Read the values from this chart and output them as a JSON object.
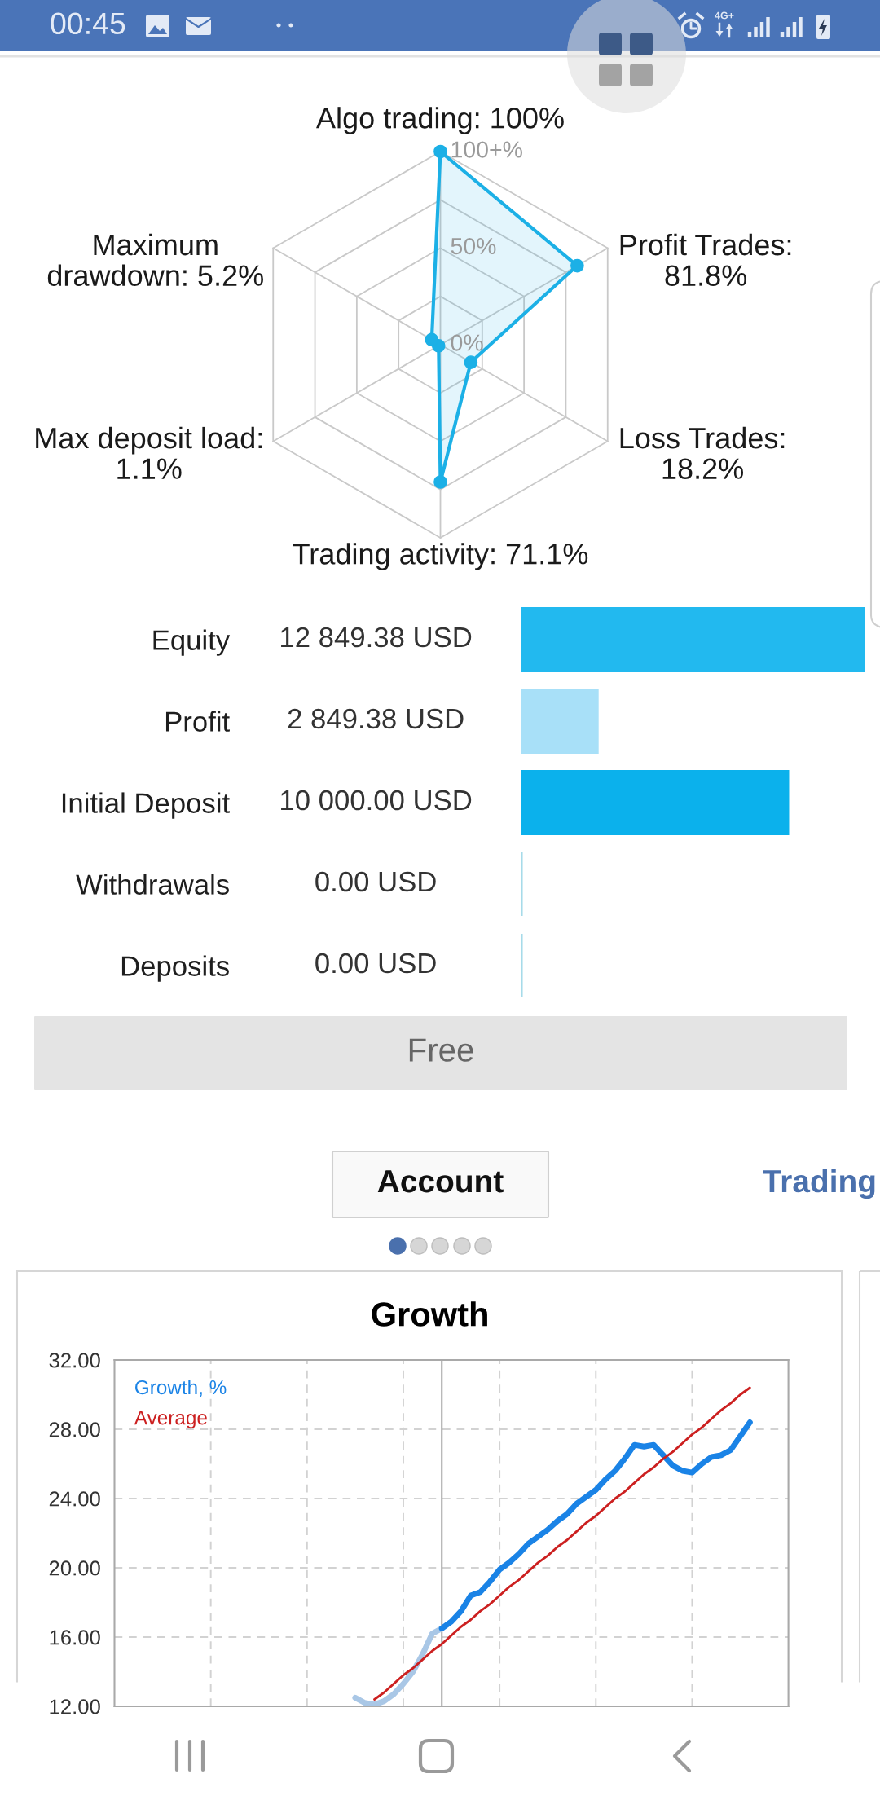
{
  "chart_data": [
    {
      "type": "other",
      "annotations": [
        "00:45",
        "4G+"
      ]
    },
    {
      "type": "radar",
      "categories": [
        "Algo trading: 100%",
        "Profit Trades:\n81.8%",
        "Loss Trades:\n18.2%",
        "Trading activity: 71.1%",
        "Max deposit load:\n1.1%",
        "Maximum\ndrawdown: 5.2%"
      ],
      "series": [
        {
          "color": "#1cb0e6",
          "values": [
            100,
            81.8,
            18.2,
            71.1,
            1.1,
            5.2
          ]
        }
      ],
      "ylim": [
        0,
        100
      ],
      "yticks": [
        {
          "value": 0,
          "label": "0%"
        },
        {
          "value": 50,
          "label": "50%"
        },
        {
          "value": 100,
          "label": "100+%"
        }
      ],
      "grid": true,
      "marker": "circle"
    },
    {
      "type": "bar",
      "orientation": "horizontal",
      "categories": [
        "Equity",
        "Profit",
        "Initial Deposit",
        "Withdrawals",
        "Deposits"
      ],
      "values": [
        12849.38,
        2849.38,
        10000,
        0,
        0
      ],
      "colors": [
        "#22b9ef",
        "#a8e0f8",
        "#0bb1ec",
        "#a6dbe9",
        "#a6dbe9"
      ],
      "value_labels": [
        "12 849.38 USD",
        "2 849.38 USD",
        "10 000.00 USD",
        "0.00 USD",
        "0.00 USD"
      ],
      "tick_labels": "y"
    },
    {
      "type": "other",
      "annotations": [
        "Free",
        "Account",
        "Trading"
      ]
    },
    {
      "type": "line",
      "title": "Growth",
      "categories": [
        null,
        null,
        null,
        null,
        null,
        null,
        null,
        null,
        null,
        null,
        null,
        null,
        null,
        null,
        null,
        null,
        null,
        null,
        null,
        null,
        null,
        null,
        null,
        null,
        null,
        null,
        null,
        null,
        null,
        null,
        null,
        null,
        null,
        null,
        null,
        null,
        null,
        null,
        null,
        null,
        null,
        null,
        null,
        null,
        null,
        null,
        null,
        null,
        null,
        null,
        null,
        null,
        null,
        null,
        null,
        null,
        null,
        null,
        null,
        null,
        null,
        null,
        null,
        null,
        null,
        null,
        null,
        null,
        null,
        null,
        null
      ],
      "series": [
        {
          "color": "#a9c7e6",
          "values": [
            null,
            null,
            null,
            null,
            null,
            null,
            null,
            null,
            null,
            null,
            null,
            null,
            null,
            null,
            null,
            null,
            null,
            null,
            null,
            null,
            null,
            null,
            null,
            null,
            null,
            12.5,
            12.2,
            12.1,
            12.3,
            12.7,
            13.3,
            14.0,
            15.0,
            16.2,
            16.5,
            null,
            null,
            null,
            null,
            null,
            null,
            null,
            null,
            null,
            null,
            null,
            null,
            null,
            null,
            null,
            null,
            null,
            null,
            null,
            null,
            null,
            null,
            null,
            null,
            null,
            null,
            null,
            null,
            null,
            null,
            null,
            null,
            null,
            null,
            null,
            null
          ]
        },
        {
          "name": "Growth, %",
          "color": "#1a83e6",
          "values": [
            null,
            null,
            null,
            null,
            null,
            null,
            null,
            null,
            null,
            null,
            null,
            null,
            null,
            null,
            null,
            null,
            null,
            null,
            null,
            null,
            null,
            null,
            null,
            null,
            null,
            null,
            null,
            null,
            null,
            null,
            null,
            null,
            null,
            null,
            16.5,
            16.9,
            17.5,
            18.4,
            18.6,
            19.2,
            19.9,
            20.3,
            20.8,
            21.4,
            21.8,
            22.2,
            22.7,
            23.1,
            23.7,
            24.1,
            24.5,
            25.1,
            25.6,
            26.3,
            27.1,
            27.0,
            27.1,
            26.5,
            25.9,
            25.6,
            25.5,
            26.0,
            26.4,
            26.5,
            26.8,
            27.6,
            28.4,
            null,
            null,
            null,
            null
          ]
        },
        {
          "name": "Average",
          "color": "#cc2020",
          "values": [
            null,
            null,
            null,
            null,
            null,
            null,
            null,
            null,
            null,
            null,
            null,
            null,
            null,
            null,
            null,
            null,
            null,
            null,
            null,
            null,
            null,
            null,
            null,
            null,
            null,
            null,
            null,
            12.4,
            12.8,
            13.3,
            13.8,
            14.2,
            14.7,
            15.2,
            15.6,
            16.1,
            16.6,
            17.0,
            17.5,
            17.9,
            18.4,
            18.9,
            19.3,
            19.8,
            20.3,
            20.7,
            21.2,
            21.6,
            22.1,
            22.6,
            23.0,
            23.5,
            24.0,
            24.4,
            24.9,
            25.4,
            25.8,
            26.3,
            26.7,
            27.2,
            27.7,
            28.1,
            28.6,
            29.1,
            29.5,
            30.0,
            30.4,
            null,
            null,
            null,
            null
          ]
        }
      ],
      "ylim": [
        12,
        32
      ],
      "yticks": [
        {
          "value": 12,
          "label": "12.00"
        },
        {
          "value": 16,
          "label": "16.00"
        },
        {
          "value": 20,
          "label": "20.00"
        },
        {
          "value": 24,
          "label": "24.00"
        },
        {
          "value": 28,
          "label": "28.00"
        },
        {
          "value": 32,
          "label": "32.00"
        }
      ],
      "grid": true,
      "legend": "top left",
      "tick_labels": "y"
    }
  ]
}
